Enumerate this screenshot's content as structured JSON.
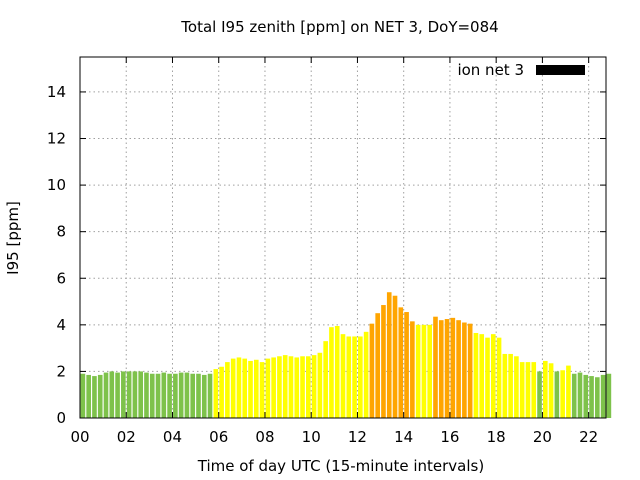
{
  "chart_data": {
    "type": "bar",
    "title": "Total I95 zenith [ppm] on NET 3, DoY=084",
    "xlabel": "Time of day UTC (15-minute intervals)",
    "ylabel": "I95 [ppm]",
    "xlim": [
      0,
      22.75
    ],
    "ylim": [
      0,
      15.5
    ],
    "x_tick_values": [
      0,
      2,
      4,
      6,
      8,
      10,
      12,
      14,
      16,
      18,
      20,
      22
    ],
    "x_tick_labels": [
      "00",
      "02",
      "04",
      "06",
      "08",
      "10",
      "12",
      "14",
      "16",
      "18",
      "20",
      "22"
    ],
    "y_tick_values": [
      0,
      2,
      4,
      6,
      8,
      10,
      12,
      14
    ],
    "y_tick_labels": [
      "0",
      "2",
      "4",
      "6",
      "8",
      "10",
      "12",
      "14"
    ],
    "grid": true,
    "legend": {
      "position": "top-right",
      "entries": [
        {
          "name": "ion net 3",
          "color": "#000000"
        }
      ]
    },
    "interval_hours": 0.25,
    "color_levels": [
      {
        "max": 2.0,
        "color": "#7ec24b"
      },
      {
        "max": 4.0,
        "color": "#ffff00"
      },
      {
        "max": 99,
        "color": "#ffa500"
      }
    ],
    "values": [
      1.9,
      1.85,
      1.8,
      1.85,
      1.95,
      2.0,
      1.95,
      2.0,
      2.0,
      2.0,
      2.0,
      1.95,
      1.9,
      1.9,
      1.95,
      1.9,
      1.9,
      1.95,
      1.95,
      1.9,
      1.9,
      1.85,
      1.9,
      2.1,
      2.2,
      2.4,
      2.55,
      2.6,
      2.55,
      2.45,
      2.5,
      2.4,
      2.55,
      2.6,
      2.65,
      2.7,
      2.65,
      2.6,
      2.65,
      2.65,
      2.7,
      2.8,
      3.3,
      3.9,
      3.95,
      3.6,
      3.5,
      3.5,
      3.5,
      3.7,
      4.05,
      4.5,
      4.85,
      5.4,
      5.25,
      4.75,
      4.55,
      4.15,
      4.0,
      4.0,
      4.0,
      4.35,
      4.2,
      4.25,
      4.3,
      4.2,
      4.1,
      4.05,
      3.65,
      3.6,
      3.45,
      3.6,
      3.45,
      2.75,
      2.75,
      2.65,
      2.4,
      2.4,
      2.4,
      2.0,
      2.45,
      2.35,
      2.0,
      2.05,
      2.25,
      1.9,
      1.95,
      1.85,
      1.8,
      1.75,
      1.85,
      1.9
    ]
  }
}
